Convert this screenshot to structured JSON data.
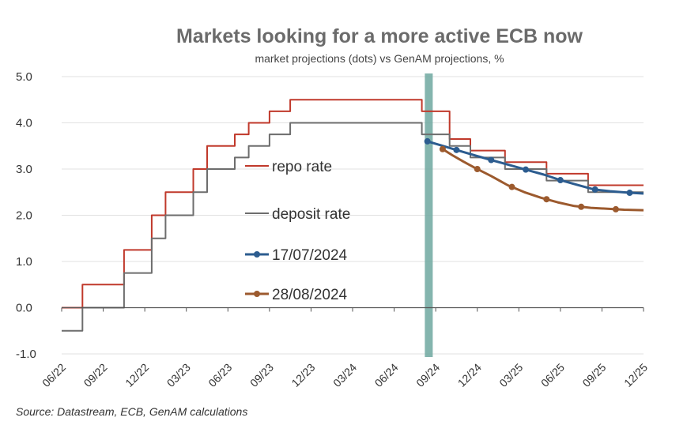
{
  "chart_data": {
    "type": "line",
    "title": "Markets looking for a more active ECB now",
    "subtitle": "market projections (dots) vs GenAM projections, %",
    "source": "Source: Datastream, ECB, GenAM calculations",
    "ylim": [
      -1.0,
      5.0
    ],
    "y_ticks": [
      "5.0",
      "4.0",
      "3.0",
      "2.0",
      "1.0",
      "0.0",
      "-1.0"
    ],
    "x_tick_labels": [
      "06/22",
      "09/22",
      "12/22",
      "03/23",
      "06/23",
      "09/23",
      "12/23",
      "03/24",
      "06/24",
      "09/24",
      "12/24",
      "03/25",
      "06/25",
      "09/25",
      "12/25"
    ],
    "x_range_months": [
      0,
      42
    ],
    "vertical_marker_month": 26.5,
    "series": [
      {
        "name": "repo rate",
        "color": "#c0392b",
        "style": "step",
        "points": [
          [
            0,
            0
          ],
          [
            1.5,
            0
          ],
          [
            1.5,
            0.5
          ],
          [
            4.5,
            0.5
          ],
          [
            4.5,
            1.25
          ],
          [
            6.5,
            1.25
          ],
          [
            6.5,
            2.0
          ],
          [
            7.5,
            2.0
          ],
          [
            7.5,
            2.5
          ],
          [
            9.5,
            2.5
          ],
          [
            9.5,
            3.0
          ],
          [
            10.5,
            3.0
          ],
          [
            10.5,
            3.5
          ],
          [
            12.5,
            3.5
          ],
          [
            12.5,
            3.75
          ],
          [
            13.5,
            3.75
          ],
          [
            13.5,
            4.0
          ],
          [
            15,
            4.0
          ],
          [
            15,
            4.25
          ],
          [
            16.5,
            4.25
          ],
          [
            16.5,
            4.5
          ],
          [
            26,
            4.5
          ],
          [
            26,
            4.25
          ],
          [
            28,
            4.25
          ],
          [
            28,
            3.65
          ],
          [
            29.5,
            3.65
          ],
          [
            29.5,
            3.4
          ],
          [
            32,
            3.4
          ],
          [
            32,
            3.15
          ],
          [
            35,
            3.15
          ],
          [
            35,
            2.9
          ],
          [
            38,
            2.9
          ],
          [
            38,
            2.65
          ],
          [
            42,
            2.65
          ]
        ]
      },
      {
        "name": "deposit rate",
        "color": "#6d6d6d",
        "style": "step",
        "points": [
          [
            0,
            -0.5
          ],
          [
            1.5,
            -0.5
          ],
          [
            1.5,
            0
          ],
          [
            4.5,
            0
          ],
          [
            4.5,
            0.75
          ],
          [
            6.5,
            0.75
          ],
          [
            6.5,
            1.5
          ],
          [
            7.5,
            1.5
          ],
          [
            7.5,
            2.0
          ],
          [
            9.5,
            2.0
          ],
          [
            9.5,
            2.5
          ],
          [
            10.5,
            2.5
          ],
          [
            10.5,
            3.0
          ],
          [
            12.5,
            3.0
          ],
          [
            12.5,
            3.25
          ],
          [
            13.5,
            3.25
          ],
          [
            13.5,
            3.5
          ],
          [
            15,
            3.5
          ],
          [
            15,
            3.75
          ],
          [
            16.5,
            3.75
          ],
          [
            16.5,
            4.0
          ],
          [
            26,
            4.0
          ],
          [
            26,
            3.75
          ],
          [
            28,
            3.75
          ],
          [
            28,
            3.5
          ],
          [
            29.5,
            3.5
          ],
          [
            29.5,
            3.25
          ],
          [
            32,
            3.25
          ],
          [
            32,
            3.0
          ],
          [
            35,
            3.0
          ],
          [
            35,
            2.75
          ],
          [
            38,
            2.75
          ],
          [
            38,
            2.5
          ],
          [
            42,
            2.5
          ]
        ]
      },
      {
        "name": "17/07/2024",
        "color": "#2c5c8f",
        "style": "line-dots",
        "points": [
          [
            26.4,
            3.6
          ],
          [
            27.3,
            3.52
          ],
          [
            28.2,
            3.44
          ],
          [
            29.1,
            3.36
          ],
          [
            30,
            3.28
          ],
          [
            31.2,
            3.18
          ],
          [
            32.4,
            3.08
          ],
          [
            33.6,
            2.98
          ],
          [
            34.8,
            2.88
          ],
          [
            36,
            2.76
          ],
          [
            37.2,
            2.66
          ],
          [
            38.4,
            2.56
          ],
          [
            39.6,
            2.52
          ],
          [
            40.8,
            2.49
          ],
          [
            42,
            2.47
          ]
        ],
        "dot_months": [
          26.4,
          28.5,
          31,
          33.5,
          36,
          38.5,
          41
        ]
      },
      {
        "name": "28/08/2024",
        "color": "#9c5a2e",
        "style": "line-dots",
        "points": [
          [
            27.4,
            3.45
          ],
          [
            28.2,
            3.3
          ],
          [
            29,
            3.16
          ],
          [
            29.8,
            3.03
          ],
          [
            31,
            2.85
          ],
          [
            32.2,
            2.65
          ],
          [
            33.4,
            2.5
          ],
          [
            34.6,
            2.38
          ],
          [
            35.8,
            2.28
          ],
          [
            37,
            2.2
          ],
          [
            38.2,
            2.16
          ],
          [
            39.4,
            2.14
          ],
          [
            40.6,
            2.12
          ],
          [
            42,
            2.11
          ]
        ],
        "dot_months": [
          27.5,
          30,
          32.5,
          35,
          37.5,
          40
        ]
      }
    ],
    "legend_placement": "center-left"
  }
}
